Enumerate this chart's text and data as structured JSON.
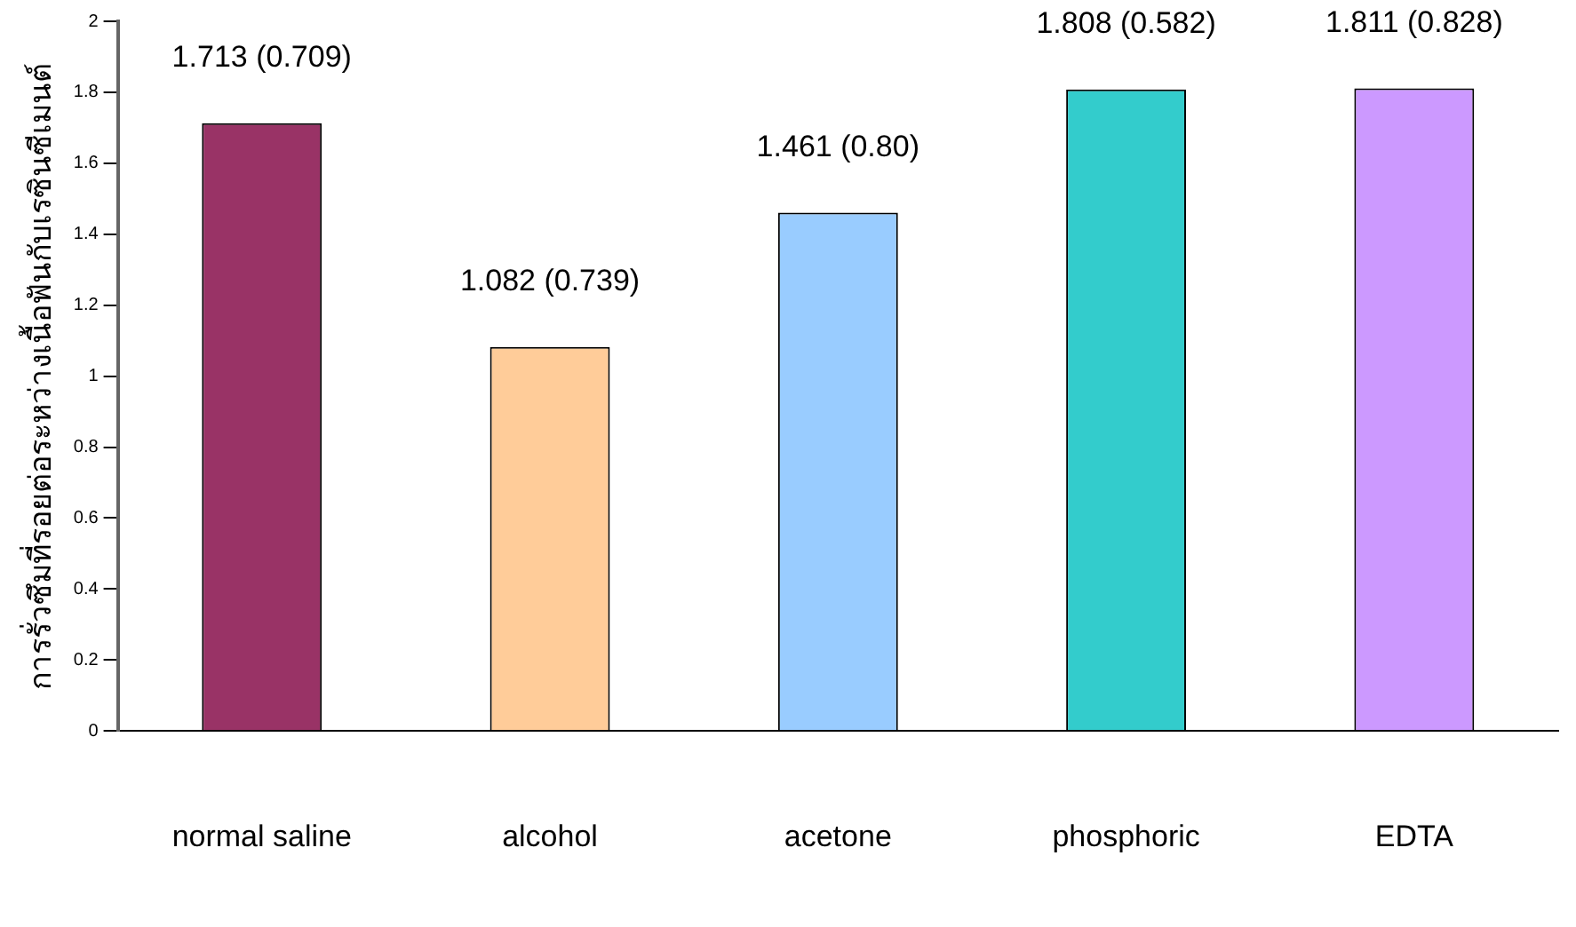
{
  "chart_data": {
    "type": "bar",
    "ylabel": "การรั่วซึมที่รอยต่อระหว่างเนื้อฟันกับเรซินซีเมนต์",
    "categories": [
      "normal saline",
      "alcohol",
      "acetone",
      "phosphoric",
      "EDTA"
    ],
    "values": [
      1.713,
      1.082,
      1.461,
      1.808,
      1.811
    ],
    "colors": [
      "#993366",
      "#ffcc99",
      "#99ccff",
      "#33cccc",
      "#cc99ff"
    ],
    "value_labels": [
      "1.713 (0.709)",
      "1.082 (0.739)",
      "1.461 (0.80)",
      "1.808 (0.582)",
      "1.811 (0.828)"
    ],
    "ylim": [
      0,
      2
    ],
    "yticks": [
      0,
      0.2,
      0.4,
      0.6,
      0.8,
      1,
      1.2,
      1.4,
      1.6,
      1.8,
      2
    ],
    "grid": false,
    "legend": false
  }
}
